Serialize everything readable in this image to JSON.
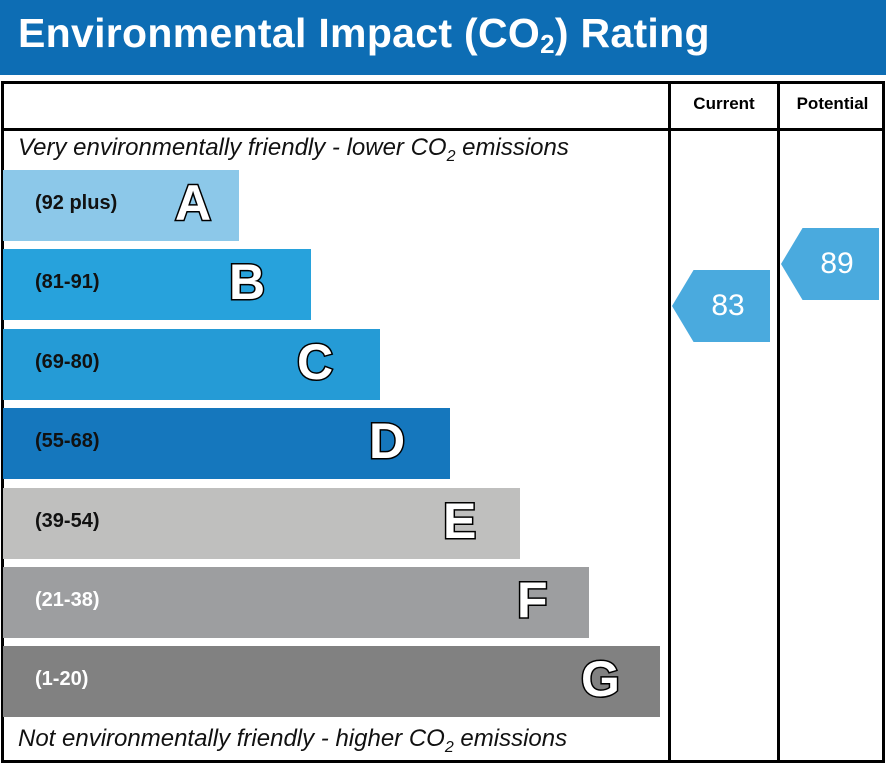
{
  "title": {
    "pre": "Environmental Impact (CO",
    "sub": "2",
    "post": ") Rating"
  },
  "header": {
    "current": "Current",
    "potential": "Potential"
  },
  "top_note": {
    "pre": "Very environmentally friendly - lower CO",
    "sub": "2",
    "post": " emissions"
  },
  "bottom_note": {
    "pre": "Not environmentally friendly - higher CO",
    "sub": "2",
    "post": " emissions"
  },
  "chart_data": {
    "type": "bar",
    "title": "Environmental Impact (CO2) Rating",
    "bands": [
      {
        "letter": "A",
        "range": "(92 plus)",
        "color": "#8cc8e9",
        "text_color": "#111"
      },
      {
        "letter": "B",
        "range": "(81-91)",
        "color": "#27a2dc",
        "text_color": "#111"
      },
      {
        "letter": "C",
        "range": "(69-80)",
        "color": "#259bd6",
        "text_color": "#111"
      },
      {
        "letter": "D",
        "range": "(55-68)",
        "color": "#1577bd",
        "text_color": "#111"
      },
      {
        "letter": "E",
        "range": "(39-54)",
        "color": "#bfbfbe",
        "text_color": "#111"
      },
      {
        "letter": "F",
        "range": "(21-38)",
        "color": "#9d9ea0",
        "text_color": "#fff"
      },
      {
        "letter": "G",
        "range": "(1-20)",
        "color": "#818181",
        "text_color": "#fff"
      }
    ],
    "current": {
      "value": 83,
      "band": "B",
      "color": "#4aaade"
    },
    "potential": {
      "value": 89,
      "band": "B",
      "color": "#4aaade"
    }
  }
}
